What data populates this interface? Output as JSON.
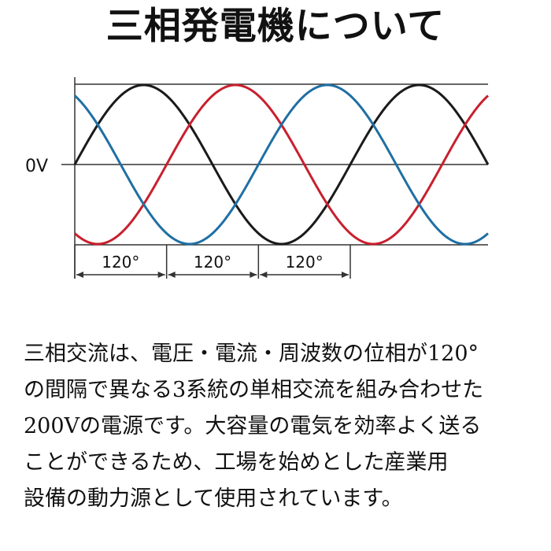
{
  "title": "三相発電機について",
  "chart_data": {
    "type": "line",
    "zero_label": "0V",
    "phase_labels": [
      "120°",
      "120°",
      "120°"
    ],
    "phase_shift_deg": 120,
    "cycles_shown": 1.5,
    "series": [
      {
        "color": "#1a1a1a",
        "phase_deg": 0
      },
      {
        "color": "#c8202e",
        "phase_deg": -120
      },
      {
        "color": "#1f6fa3",
        "phase_deg": 120
      }
    ]
  },
  "description": {
    "lines": [
      "三相交流は、電圧・電流・周波数の位相が120°",
      "の間隔で異なる3系統の単相交流を組み合わせた",
      "200Vの電源です。大容量の電気を効率よく送る",
      "ことができるため、工場を始めとした産業用",
      "設備の動力源として使用されています。"
    ]
  }
}
